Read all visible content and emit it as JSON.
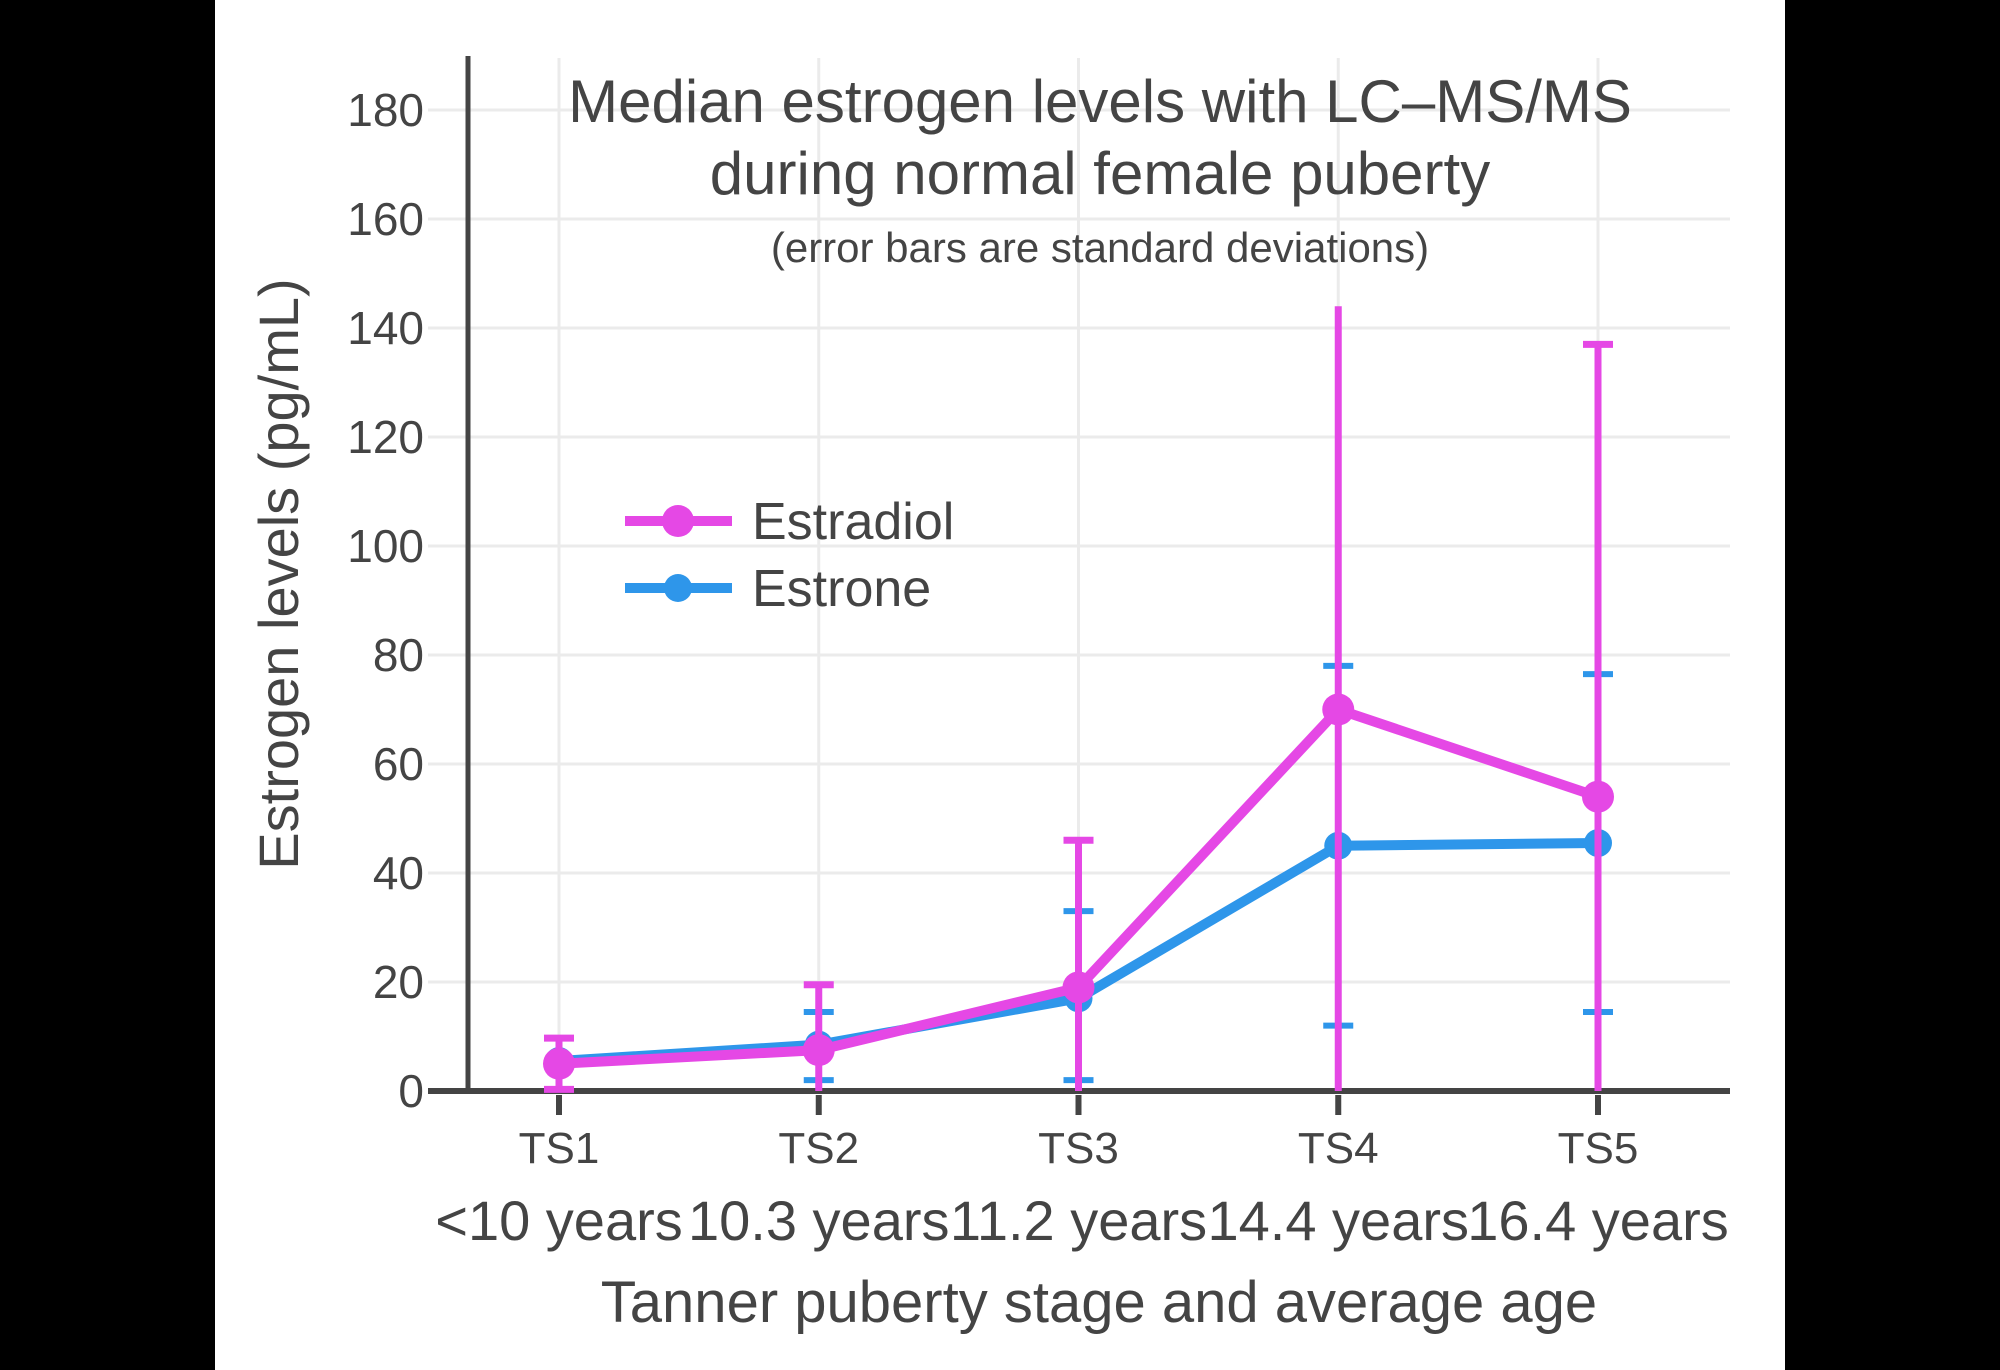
{
  "page": {
    "background": "#000000",
    "canvas_background": "#ffffff",
    "text_color": "#444444",
    "grid_color": "#EBEBEB",
    "axis_color": "#444444"
  },
  "chart_data": {
    "type": "line",
    "title": "Median estrogen levels with LC–MS/MS",
    "title_line2": "during normal female puberty",
    "subtitle": "(error bars are standard deviations)",
    "xlabel": "Tanner puberty stage and average age",
    "ylabel": "Estrogen levels (pg/mL)",
    "categories": [
      "TS1",
      "TS2",
      "TS3",
      "TS4",
      "TS5"
    ],
    "category_ages": [
      "<10 years",
      "10.3 years",
      "11.2 years",
      "14.4 years",
      "16.4 years"
    ],
    "ylim": [
      0,
      190
    ],
    "yticks": [
      0,
      20,
      40,
      60,
      80,
      100,
      120,
      140,
      160,
      180
    ],
    "grid": true,
    "error_bar_meaning": "standard deviations",
    "legend_position": "inside-upper-left",
    "series": [
      {
        "name": "Estrone",
        "color": "#2E96EA",
        "values": [
          5.5,
          8.5,
          17,
          45,
          45.5
        ],
        "error_high": [
          null,
          14.5,
          33,
          78,
          76.5
        ],
        "error_low": [
          null,
          2,
          2,
          12,
          14.5
        ],
        "cap_high": [
          false,
          true,
          true,
          true,
          true
        ],
        "cap_low": [
          false,
          true,
          true,
          true,
          true
        ]
      },
      {
        "name": "Estradiol",
        "color": "#E548E5",
        "values": [
          5,
          7.5,
          19,
          70,
          54
        ],
        "error_high": [
          9.7,
          19.5,
          46,
          144,
          137
        ],
        "error_low": [
          0.3,
          0,
          0,
          0,
          0
        ],
        "cap_high": [
          true,
          true,
          true,
          false,
          true
        ],
        "cap_low": [
          true,
          false,
          false,
          false,
          false
        ]
      }
    ],
    "legend": [
      {
        "label": "Estradiol",
        "color": "#E548E5"
      },
      {
        "label": "Estrone",
        "color": "#2E96EA"
      }
    ]
  }
}
